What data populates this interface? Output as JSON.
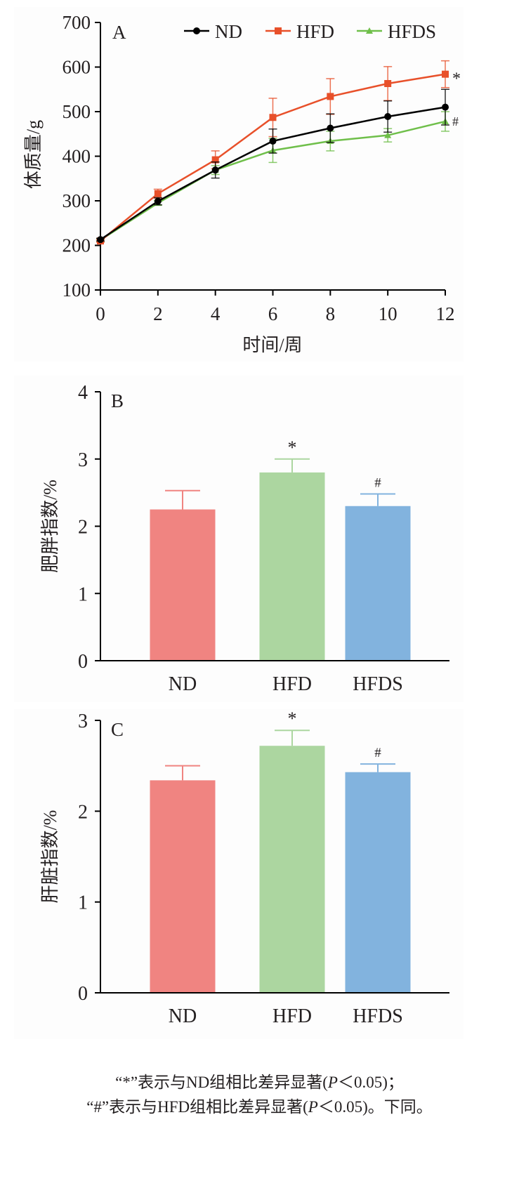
{
  "chart_data": [
    {
      "type": "line",
      "panel_label": "A",
      "xlabel": "时间/周",
      "ylabel": "体质量/g",
      "x": [
        0,
        2,
        4,
        6,
        8,
        10,
        12
      ],
      "xticks": [
        "0",
        "2",
        "4",
        "6",
        "8",
        "10",
        "12"
      ],
      "yticks": [
        "100",
        "200",
        "300",
        "400",
        "500",
        "600",
        "700"
      ],
      "xlim": [
        0,
        12
      ],
      "ylim": [
        100,
        700
      ],
      "grid": false,
      "legend_position": "top-right",
      "series": [
        {
          "name": "ND",
          "color": "#000000",
          "marker": "circle",
          "values": [
            213,
            299,
            369,
            434,
            463,
            489,
            510
          ],
          "errors": [
            3,
            8,
            18,
            27,
            32,
            35,
            40
          ],
          "annotation": ""
        },
        {
          "name": "HFD",
          "color": "#e8502a",
          "marker": "square",
          "values": [
            210,
            316,
            392,
            487,
            534,
            563,
            584
          ],
          "errors": [
            3,
            10,
            20,
            43,
            40,
            38,
            30
          ],
          "annotation": "*"
        },
        {
          "name": "HFDS",
          "color": "#6fbf4a",
          "marker": "triangle",
          "values": [
            212,
            295,
            369,
            413,
            434,
            447,
            478
          ],
          "errors": [
            3,
            5,
            10,
            27,
            22,
            15,
            22
          ],
          "annotation": "#"
        }
      ]
    },
    {
      "type": "bar",
      "panel_label": "B",
      "ylabel": "肥胖指数/%",
      "categories": [
        "ND",
        "HFD",
        "HFDS"
      ],
      "values": [
        2.25,
        2.8,
        2.3
      ],
      "errors": [
        0.28,
        0.2,
        0.18
      ],
      "annotations": [
        "",
        "*",
        "#"
      ],
      "colors": [
        "#f08481",
        "#acd6a0",
        "#82b3de"
      ],
      "yticks": [
        "0",
        "1",
        "2",
        "3",
        "4"
      ],
      "ylim": [
        0,
        4
      ],
      "grid": false
    },
    {
      "type": "bar",
      "panel_label": "C",
      "ylabel": "肝脏指数/%",
      "categories": [
        "ND",
        "HFD",
        "HFDS"
      ],
      "values": [
        2.34,
        2.72,
        2.43
      ],
      "errors": [
        0.16,
        0.17,
        0.09
      ],
      "annotations": [
        "",
        "*",
        "#"
      ],
      "colors": [
        "#f08481",
        "#acd6a0",
        "#82b3de"
      ],
      "yticks": [
        "0",
        "1",
        "2",
        "3"
      ],
      "ylim": [
        0,
        3
      ],
      "grid": false
    }
  ],
  "footnote": {
    "line1": {
      "pre": "“*”表示与ND组相比差异显著(",
      "p": "P",
      "post": "＜0.05)；"
    },
    "line2": {
      "pre": "“#”表示与HFD组相比差异显著(",
      "p": "P",
      "post": "＜0.05)。下同。"
    }
  }
}
